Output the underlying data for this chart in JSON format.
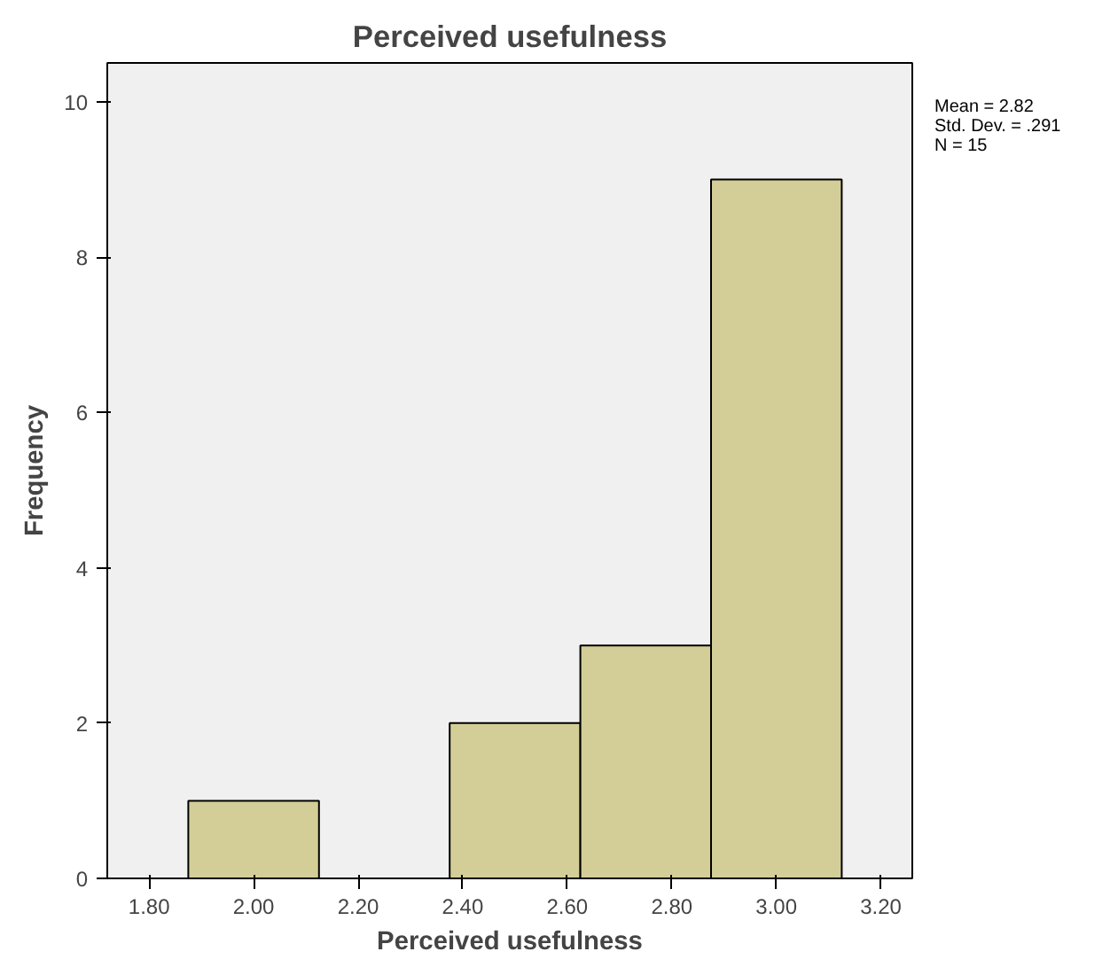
{
  "chart_data": {
    "type": "histogram",
    "title": "Perceived usefulness",
    "xlabel": "Perceived usefulness",
    "ylabel": "Frequency",
    "bins": [
      1.875,
      2.125,
      2.375,
      2.625,
      2.875,
      3.125
    ],
    "values": [
      1,
      0,
      2,
      3,
      9
    ],
    "color": "#d3ce97",
    "xlim": [
      1.72,
      3.26
    ],
    "ylim": [
      0,
      10.5
    ],
    "xticks": [
      {
        "value": 1.8,
        "label": "1.80"
      },
      {
        "value": 2.0,
        "label": "2.00"
      },
      {
        "value": 2.2,
        "label": "2.20"
      },
      {
        "value": 2.4,
        "label": "2.40"
      },
      {
        "value": 2.6,
        "label": "2.60"
      },
      {
        "value": 2.8,
        "label": "2.80"
      },
      {
        "value": 3.0,
        "label": "3.00"
      },
      {
        "value": 3.2,
        "label": "3.20"
      }
    ],
    "yticks": [
      0,
      2,
      4,
      6,
      8,
      10
    ],
    "grid": false,
    "annotations": [
      "Mean = 2.82",
      "Std. Dev. = .291",
      "N = 15"
    ]
  }
}
